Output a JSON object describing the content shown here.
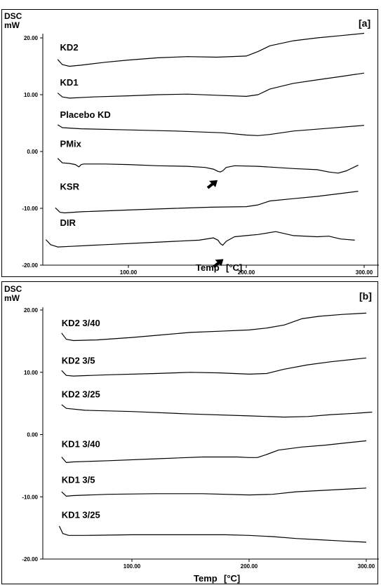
{
  "chart_data": [
    {
      "type": "line",
      "panel_label": "[a]",
      "ylabel_top": "DSC",
      "ylabel_unit": "mW",
      "xlabel": "Temp",
      "xlabel_unit": "[°C]",
      "xlim": [
        25,
        305
      ],
      "ylim": [
        -20,
        22
      ],
      "yticks": [
        "20.00",
        "10.00",
        "0.00",
        "-10.00",
        "-20.00"
      ],
      "ytick_values": [
        20,
        10,
        0,
        -10,
        -20
      ],
      "xticks": [
        "100.00",
        "200.00",
        "300.00"
      ],
      "xtick_values": [
        100,
        200,
        300
      ],
      "grid": false,
      "arrows": [
        {
          "x": 178,
          "y": -4.3
        },
        {
          "x": 183,
          "y": -18.2
        }
      ],
      "series": [
        {
          "name": "KD2",
          "label_x": 42,
          "label_y": 17.8,
          "x": [
            40,
            44,
            50,
            60,
            80,
            100,
            125,
            150,
            175,
            200,
            210,
            220,
            240,
            260,
            280,
            300
          ],
          "y": [
            16.2,
            15.3,
            15.0,
            15.2,
            15.7,
            16.1,
            16.5,
            16.7,
            16.6,
            16.8,
            17.6,
            18.6,
            19.5,
            20.0,
            20.4,
            20.8
          ]
        },
        {
          "name": "KD1",
          "label_x": 42,
          "label_y": 11.6,
          "x": [
            40,
            44,
            50,
            70,
            100,
            125,
            150,
            175,
            200,
            210,
            220,
            240,
            260,
            280,
            300
          ],
          "y": [
            10.3,
            9.6,
            9.4,
            9.6,
            9.8,
            10.0,
            10.1,
            9.9,
            9.7,
            10.0,
            11.0,
            12.0,
            12.6,
            13.2,
            13.8
          ]
        },
        {
          "name": "Placebo KD",
          "label_x": 42,
          "label_y": 5.9,
          "x": [
            40,
            44,
            60,
            100,
            140,
            180,
            200,
            210,
            220,
            240,
            270,
            300
          ],
          "y": [
            4.7,
            4.2,
            4.0,
            3.8,
            3.6,
            3.3,
            2.9,
            2.8,
            3.0,
            3.6,
            4.1,
            4.6
          ]
        },
        {
          "name": "PMix",
          "label_x": 42,
          "label_y": 0.8,
          "x": [
            40,
            44,
            50,
            55,
            58,
            60,
            62,
            80,
            100,
            125,
            150,
            165,
            172,
            176,
            178,
            180,
            183,
            190,
            210,
            240,
            260,
            270,
            278,
            285,
            295
          ],
          "y": [
            -1.2,
            -2.0,
            -2.1,
            -2.3,
            -2.7,
            -2.3,
            -2.2,
            -2.2,
            -2.3,
            -2.5,
            -2.6,
            -2.8,
            -3.1,
            -3.5,
            -3.6,
            -3.4,
            -2.8,
            -2.5,
            -2.6,
            -3.0,
            -3.2,
            -3.6,
            -3.8,
            -3.4,
            -2.4
          ]
        },
        {
          "name": "KSR",
          "label_x": 42,
          "label_y": -6.7,
          "x": [
            38,
            42,
            46,
            60,
            100,
            140,
            170,
            200,
            210,
            220,
            240,
            260,
            280,
            295
          ],
          "y": [
            -9.9,
            -10.7,
            -10.8,
            -10.6,
            -10.3,
            -10.0,
            -9.8,
            -9.7,
            -9.4,
            -8.7,
            -8.3,
            -7.9,
            -7.4,
            -7.0
          ]
        },
        {
          "name": "DIR",
          "label_x": 42,
          "label_y": -13.1,
          "x": [
            30,
            34,
            40,
            50,
            80,
            120,
            160,
            172,
            176,
            178,
            180,
            183,
            190,
            200,
            210,
            225,
            240,
            260,
            270,
            280,
            292
          ],
          "y": [
            -15.5,
            -16.4,
            -16.8,
            -16.7,
            -16.4,
            -16.0,
            -15.6,
            -15.2,
            -15.6,
            -16.2,
            -16.5,
            -15.8,
            -15.0,
            -14.8,
            -14.6,
            -14.1,
            -14.8,
            -15.0,
            -14.9,
            -15.4,
            -15.6
          ]
        }
      ]
    },
    {
      "type": "line",
      "panel_label": "[b]",
      "ylabel_top": "DSC",
      "ylabel_unit": "mW",
      "xlabel": "Temp",
      "xlabel_unit": "[°C]",
      "xlim": [
        25,
        310
      ],
      "ylim": [
        -20,
        22
      ],
      "yticks": [
        "20.00",
        "10.00",
        "0.00",
        "-10.00",
        "-20.00"
      ],
      "ytick_values": [
        20,
        10,
        0,
        -10,
        -20
      ],
      "xticks": [
        "100.00",
        "200.00",
        "300.00"
      ],
      "xtick_values": [
        100,
        200,
        300
      ],
      "grid": false,
      "arrows": [],
      "series": [
        {
          "name": "KD2 3/40",
          "label_x": 40,
          "label_y": 17.4,
          "x": [
            40,
            44,
            50,
            70,
            100,
            125,
            150,
            175,
            200,
            215,
            230,
            245,
            260,
            280,
            300
          ],
          "y": [
            16.3,
            15.3,
            15.1,
            15.2,
            15.6,
            16.0,
            16.4,
            16.6,
            16.8,
            17.1,
            17.6,
            18.6,
            19.0,
            19.3,
            19.5
          ]
        },
        {
          "name": "KD2 3/5",
          "label_x": 40,
          "label_y": 11.4,
          "x": [
            40,
            44,
            50,
            80,
            120,
            150,
            175,
            200,
            215,
            230,
            250,
            270,
            290,
            300
          ],
          "y": [
            10.3,
            9.5,
            9.4,
            9.6,
            9.8,
            10.0,
            9.9,
            9.7,
            9.8,
            10.5,
            11.2,
            11.7,
            12.1,
            12.3
          ]
        },
        {
          "name": "KD2 3/25",
          "label_x": 40,
          "label_y": 6.0,
          "x": [
            40,
            44,
            60,
            100,
            150,
            200,
            230,
            250,
            270,
            290,
            305
          ],
          "y": [
            4.8,
            4.2,
            3.9,
            3.7,
            3.3,
            3.0,
            2.8,
            2.9,
            3.2,
            3.4,
            3.6
          ]
        },
        {
          "name": "KD1 3/40",
          "label_x": 40,
          "label_y": -2.0,
          "x": [
            40,
            44,
            50,
            80,
            120,
            160,
            190,
            200,
            207,
            215,
            225,
            245,
            265,
            285,
            300
          ],
          "y": [
            -3.6,
            -4.5,
            -4.4,
            -4.2,
            -3.9,
            -3.6,
            -3.6,
            -3.7,
            -3.7,
            -3.2,
            -2.5,
            -2.0,
            -1.7,
            -1.3,
            -1.0
          ]
        },
        {
          "name": "KD1 3/5",
          "label_x": 40,
          "label_y": -7.8,
          "x": [
            40,
            44,
            50,
            80,
            120,
            160,
            200,
            220,
            240,
            260,
            280,
            300
          ],
          "y": [
            -9.2,
            -9.9,
            -9.8,
            -9.6,
            -9.5,
            -9.5,
            -9.7,
            -9.6,
            -9.2,
            -9.0,
            -8.8,
            -8.6
          ]
        },
        {
          "name": "KD1 3/25",
          "label_x": 40,
          "label_y": -13.4,
          "x": [
            38,
            41,
            46,
            60,
            100,
            140,
            180,
            200,
            220,
            240,
            260,
            280,
            300
          ],
          "y": [
            -14.7,
            -15.9,
            -16.2,
            -16.2,
            -16.1,
            -16.1,
            -16.1,
            -16.2,
            -16.4,
            -16.7,
            -16.9,
            -17.1,
            -17.3
          ]
        }
      ]
    }
  ]
}
